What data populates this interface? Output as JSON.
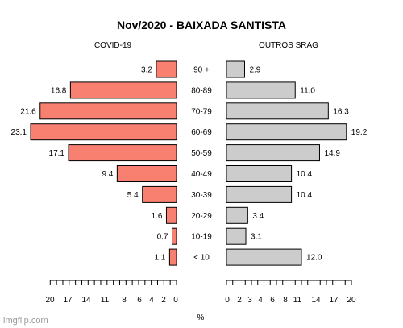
{
  "chart_data": {
    "type": "bar",
    "title": "Nov/2020 - BAIXADA SANTISTA",
    "xlabel": "%",
    "categories": [
      "90 +",
      "80-89",
      "70-79",
      "60-69",
      "50-59",
      "40-49",
      "30-39",
      "20-29",
      "10-19",
      "< 10"
    ],
    "series": [
      {
        "name": "COVID-19",
        "values": [
          3.2,
          16.8,
          21.6,
          23.1,
          17.1,
          9.4,
          5.4,
          1.6,
          0.7,
          1.1
        ],
        "value_labels": [
          "3.2",
          "16.8",
          "21.6",
          "23.1",
          "17.1",
          "9.4",
          "5.4",
          "1.6",
          "0.7",
          "1.1"
        ],
        "color": "#f88070"
      },
      {
        "name": "OUTROS SRAG",
        "values": [
          2.9,
          11.0,
          16.3,
          19.2,
          14.9,
          10.4,
          10.4,
          3.4,
          3.1,
          12.0
        ],
        "value_labels": [
          "2.9",
          "11.0",
          "16.3",
          "19.2",
          "14.9",
          "10.4",
          "10.4",
          "3.4",
          "3.1",
          "12.0"
        ],
        "color": "#cccccc"
      }
    ],
    "left_axis": {
      "range": [
        0,
        23.1
      ],
      "tick_labels": [
        "20",
        "17",
        "14",
        "11",
        "8",
        "6",
        "4",
        "2",
        "0"
      ]
    },
    "right_axis": {
      "range": [
        0,
        20
      ],
      "tick_labels": [
        "0",
        "2",
        "3",
        "4",
        "6",
        "8",
        "11",
        "14",
        "17",
        "20"
      ]
    },
    "grid": false
  },
  "watermark": "imgflip.com"
}
